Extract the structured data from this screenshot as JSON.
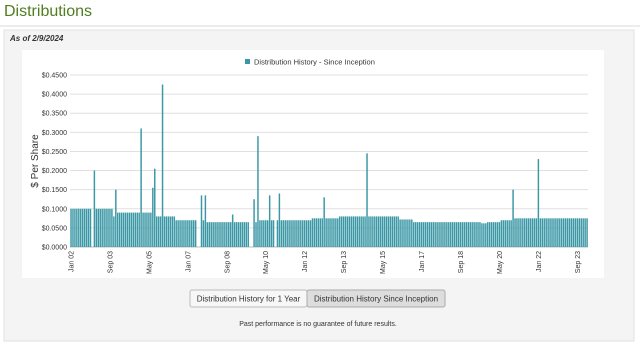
{
  "header": {
    "title": "Distributions"
  },
  "as_of": "As of 2/9/2024",
  "chart_data": {
    "type": "bar",
    "legend": "Distribution History - Since Inception",
    "y_label": "$ Per Share",
    "color": "#3a97a5",
    "grid": true,
    "ylim": [
      0,
      0.45
    ],
    "yticks": [
      {
        "value": 0,
        "label": "$0.0000"
      },
      {
        "value": 0.05,
        "label": "$0.0500"
      },
      {
        "value": 0.1,
        "label": "$0.1000"
      },
      {
        "value": 0.15,
        "label": "$0.1500"
      },
      {
        "value": 0.2,
        "label": "$0.2000"
      },
      {
        "value": 0.25,
        "label": "$0.2500"
      },
      {
        "value": 0.3,
        "label": "$0.3000"
      },
      {
        "value": 0.35,
        "label": "$0.3500"
      },
      {
        "value": 0.4,
        "label": "$0.4000"
      },
      {
        "value": 0.45,
        "label": "$0.4500"
      }
    ],
    "categories": [
      "Jan 02",
      null,
      null,
      null,
      null,
      null,
      null,
      null,
      null,
      null,
      null,
      null,
      null,
      null,
      null,
      null,
      null,
      null,
      null,
      null,
      "Sep 03",
      null,
      null,
      null,
      null,
      null,
      null,
      null,
      null,
      null,
      null,
      null,
      null,
      null,
      null,
      null,
      null,
      null,
      null,
      null,
      "May 05",
      null,
      null,
      null,
      null,
      null,
      null,
      null,
      null,
      null,
      null,
      null,
      null,
      null,
      null,
      null,
      null,
      null,
      null,
      null,
      "Jan 07",
      null,
      null,
      null,
      null,
      null,
      null,
      null,
      null,
      null,
      null,
      null,
      null,
      null,
      null,
      null,
      null,
      null,
      null,
      null,
      "Sep 08",
      null,
      null,
      null,
      null,
      null,
      null,
      null,
      null,
      null,
      null,
      null,
      null,
      null,
      null,
      null,
      null,
      null,
      null,
      null,
      "May 10",
      null,
      null,
      null,
      null,
      null,
      null,
      null,
      null,
      null,
      null,
      null,
      null,
      null,
      null,
      null,
      null,
      null,
      null,
      null,
      "Jan 12",
      null,
      null,
      null,
      null,
      null,
      null,
      null,
      null,
      null,
      null,
      null,
      null,
      null,
      null,
      null,
      null,
      null,
      null,
      null,
      "Sep 13",
      null,
      null,
      null,
      null,
      null,
      null,
      null,
      null,
      null,
      null,
      null,
      null,
      null,
      null,
      null,
      null,
      null,
      null,
      null,
      "May 15",
      null,
      null,
      null,
      null,
      null,
      null,
      null,
      null,
      null,
      null,
      null,
      null,
      null,
      null,
      null,
      null,
      null,
      null,
      null,
      "Jan 17",
      null,
      null,
      null,
      null,
      null,
      null,
      null,
      null,
      null,
      null,
      null,
      null,
      null,
      null,
      null,
      null,
      null,
      null,
      null,
      "Sep 18",
      null,
      null,
      null,
      null,
      null,
      null,
      null,
      null,
      null,
      null,
      null,
      null,
      null,
      null,
      null,
      null,
      null,
      null,
      null,
      "May 20",
      null,
      null,
      null,
      null,
      null,
      null,
      null,
      null,
      null,
      null,
      null,
      null,
      null,
      null,
      null,
      null,
      null,
      null,
      null,
      "Jan 22",
      null,
      null,
      null,
      null,
      null,
      null,
      null,
      null,
      null,
      null,
      null,
      null,
      null,
      null,
      null,
      null,
      null,
      null,
      null,
      "Sep 23",
      null,
      null,
      null,
      null,
      null
    ],
    "values": [
      0.1,
      0.1,
      0.1,
      0.1,
      0.1,
      0.1,
      0.1,
      0.1,
      0.1,
      0.1,
      0.1,
      null,
      0.2,
      0.1,
      0.1,
      0.1,
      0.1,
      0.1,
      0.1,
      0.1,
      0.1,
      0.1,
      0.08,
      0.15,
      0.09,
      0.09,
      0.09,
      0.09,
      0.09,
      0.09,
      0.09,
      0.09,
      0.09,
      0.09,
      0.09,
      0.09,
      0.31,
      0.09,
      0.09,
      0.09,
      0.09,
      0.09,
      0.155,
      0.205,
      0.08,
      0.08,
      0.08,
      0.425,
      0.08,
      0.08,
      0.08,
      0.08,
      0.08,
      0.08,
      0.07,
      0.07,
      0.07,
      0.07,
      0.07,
      0.07,
      0.07,
      0.07,
      0.07,
      0.07,
      0.07,
      null,
      null,
      0.135,
      0.07,
      0.135,
      0.065,
      0.065,
      0.065,
      0.065,
      0.065,
      0.065,
      0.065,
      0.065,
      0.065,
      0.065,
      0.065,
      0.065,
      0.065,
      0.085,
      0.065,
      0.065,
      0.065,
      0.065,
      0.065,
      0.065,
      0.065,
      0.065,
      null,
      null,
      0.125,
      0.065,
      0.29,
      0.07,
      0.07,
      0.07,
      0.07,
      0.07,
      0.135,
      0.07,
      0.07,
      null,
      0.07,
      0.14,
      0.07,
      0.07,
      0.07,
      0.07,
      0.07,
      0.07,
      0.07,
      0.07,
      0.07,
      0.07,
      0.07,
      0.07,
      0.07,
      0.07,
      0.07,
      0.07,
      0.075,
      0.075,
      0.075,
      0.075,
      0.075,
      0.075,
      0.13,
      0.075,
      0.075,
      0.075,
      0.075,
      0.075,
      0.075,
      0.075,
      0.08,
      0.08,
      0.08,
      0.08,
      0.08,
      0.08,
      0.08,
      0.08,
      0.08,
      0.08,
      0.08,
      0.08,
      0.08,
      0.08,
      0.245,
      0.08,
      0.08,
      0.08,
      0.08,
      0.08,
      0.08,
      0.08,
      0.08,
      0.08,
      0.08,
      0.08,
      0.08,
      0.08,
      0.08,
      0.08,
      0.08,
      0.072,
      0.072,
      0.072,
      0.072,
      0.072,
      0.072,
      0.072,
      0.065,
      0.065,
      0.065,
      0.065,
      0.065,
      0.065,
      0.065,
      0.065,
      0.065,
      0.065,
      0.065,
      0.065,
      0.065,
      0.065,
      0.065,
      0.065,
      0.065,
      0.065,
      0.065,
      0.065,
      0.065,
      0.065,
      0.065,
      0.065,
      0.065,
      0.065,
      0.065,
      0.065,
      0.065,
      0.065,
      0.065,
      0.065,
      0.065,
      0.065,
      0.065,
      0.062,
      0.062,
      0.062,
      0.065,
      0.065,
      0.065,
      0.065,
      0.065,
      0.065,
      0.065,
      0.07,
      0.07,
      0.07,
      0.07,
      0.07,
      0.07,
      0.15,
      0.075,
      0.075,
      0.075,
      0.075,
      0.075,
      0.075,
      0.075,
      0.075,
      0.075,
      0.075,
      0.075,
      0.075,
      0.23,
      0.075,
      0.075,
      0.075,
      0.075,
      0.075,
      0.075,
      0.075,
      0.075,
      0.075,
      0.075,
      0.075,
      0.075,
      0.075,
      0.075,
      0.075,
      0.075,
      0.075,
      0.075,
      0.075,
      0.075,
      0.075,
      0.075,
      0.075,
      0.075,
      0.075
    ]
  },
  "buttons": [
    "Distribution History for 1 Year",
    "Distribution History Since Inception"
  ],
  "footnote": "Past performance is no guarantee of future results."
}
